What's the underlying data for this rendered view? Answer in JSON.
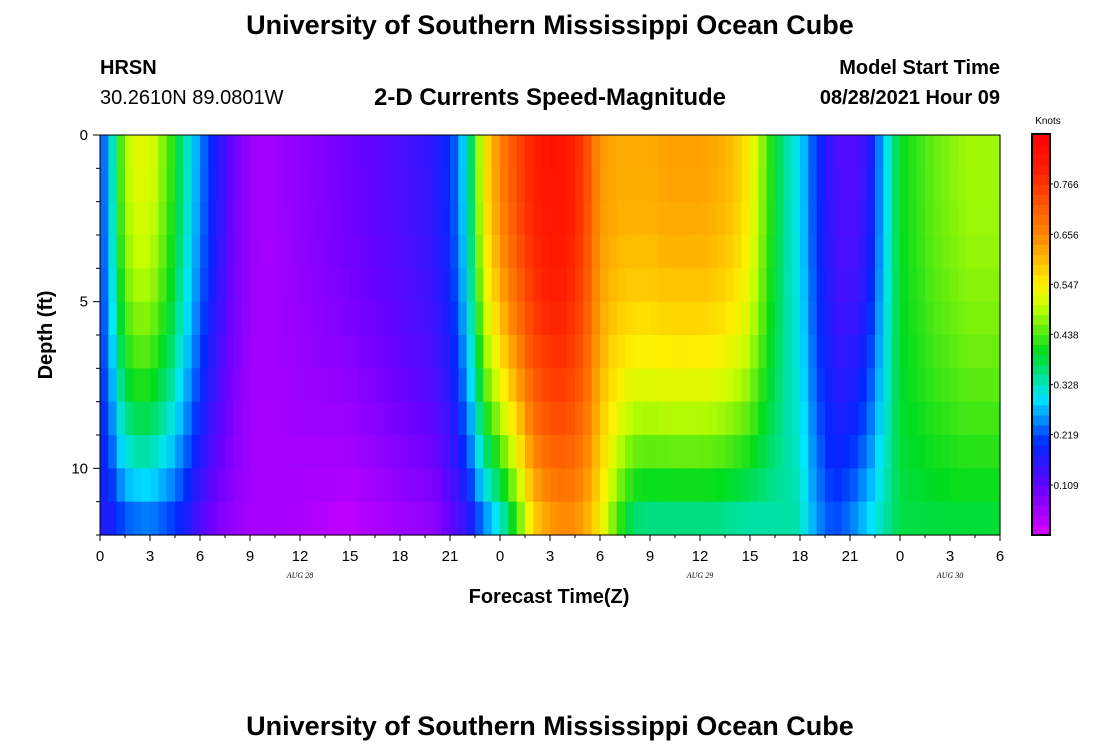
{
  "header": {
    "title": "University of Southern Mississippi Ocean Cube",
    "station": "HRSN",
    "coords": "30.2610N  89.0801W",
    "subtitle": "2-D Currents Speed-Magnitude",
    "model_label": "Model Start Time",
    "model_time": "08/28/2021 Hour 09"
  },
  "footer": {
    "title": "University of Southern Mississippi Ocean Cube"
  },
  "colorbar": {
    "unit": "Knots",
    "ticks": [
      "0.766",
      "0.656",
      "0.547",
      "0.438",
      "0.328",
      "0.219",
      "0.109"
    ],
    "tick_values": [
      0.766,
      0.656,
      0.547,
      0.438,
      0.328,
      0.219,
      0.109
    ],
    "range": [
      0.0,
      0.875
    ]
  },
  "chart_data": {
    "type": "heatmap",
    "title": "2-D Currents Speed-Magnitude",
    "xlabel": "Forecast Time(Z)",
    "ylabel": "Depth (ft)",
    "x_ticks": [
      "0",
      "3",
      "6",
      "9",
      "12",
      "15",
      "18",
      "21",
      "0",
      "3",
      "6",
      "9",
      "12",
      "15",
      "18",
      "21",
      "0",
      "3",
      "6"
    ],
    "x_range_hours": [
      0,
      54
    ],
    "date_labels": [
      {
        "label": "AUG 28",
        "hour": 12
      },
      {
        "label": "AUG 29",
        "hour": 36
      },
      {
        "label": "AUG 30",
        "hour": 51
      }
    ],
    "y_ticks": [
      "0",
      "5",
      "10"
    ],
    "y_tick_values": [
      0,
      5,
      10
    ],
    "ylim": [
      0,
      12
    ],
    "units": "Knots",
    "time_profile_hours": [
      0,
      0.5,
      1,
      1.5,
      2,
      3,
      4,
      5,
      6,
      7,
      8,
      9,
      10,
      12,
      15,
      18,
      20,
      21,
      21.5,
      22,
      22.5,
      23,
      24,
      25,
      26,
      27,
      28,
      29,
      29.5,
      30,
      31,
      32,
      33,
      34,
      35,
      36,
      37,
      38,
      39,
      40,
      41,
      42,
      43,
      44,
      45,
      46,
      47,
      48,
      50,
      52,
      54
    ],
    "surface_speed": [
      0.22,
      0.26,
      0.4,
      0.48,
      0.52,
      0.52,
      0.45,
      0.35,
      0.25,
      0.17,
      0.1,
      0.06,
      0.05,
      0.07,
      0.1,
      0.13,
      0.16,
      0.2,
      0.25,
      0.32,
      0.42,
      0.55,
      0.66,
      0.74,
      0.8,
      0.83,
      0.82,
      0.76,
      0.7,
      0.64,
      0.62,
      0.62,
      0.62,
      0.63,
      0.63,
      0.63,
      0.62,
      0.6,
      0.55,
      0.44,
      0.35,
      0.3,
      0.2,
      0.14,
      0.12,
      0.15,
      0.28,
      0.4,
      0.45,
      0.48,
      0.48
    ],
    "bottom_speed": [
      0.17,
      0.16,
      0.18,
      0.2,
      0.21,
      0.22,
      0.2,
      0.17,
      0.12,
      0.08,
      0.06,
      0.05,
      0.05,
      0.04,
      0.02,
      0.05,
      0.06,
      0.1,
      0.12,
      0.14,
      0.18,
      0.22,
      0.28,
      0.4,
      0.56,
      0.62,
      0.64,
      0.62,
      0.58,
      0.55,
      0.42,
      0.34,
      0.33,
      0.33,
      0.33,
      0.33,
      0.33,
      0.32,
      0.32,
      0.33,
      0.34,
      0.34,
      0.26,
      0.22,
      0.25,
      0.3,
      0.34,
      0.38,
      0.38,
      0.38,
      0.38
    ]
  }
}
